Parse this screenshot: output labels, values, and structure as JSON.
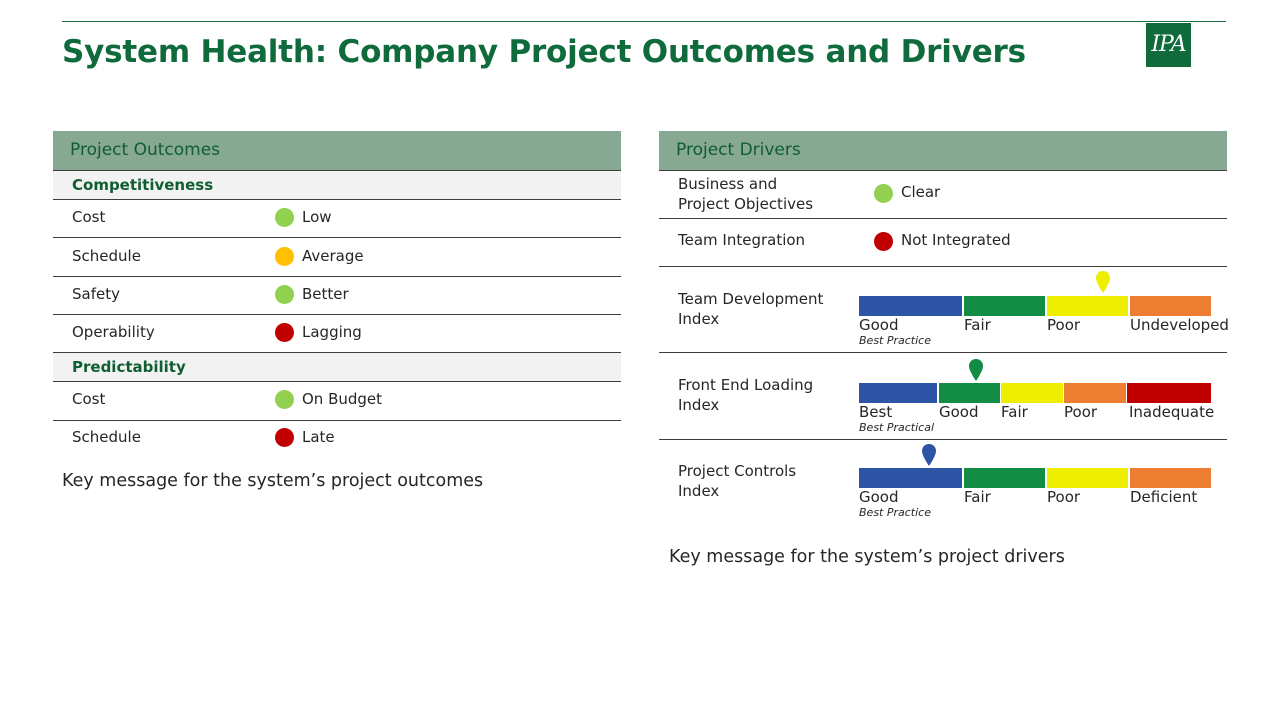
{
  "header": {
    "title": "System Health: Company Project Outcomes and Drivers",
    "logo_text": "IPA",
    "brand_color": "#0f6a3c"
  },
  "outcomes": {
    "header": "Project Outcomes",
    "competitiveness": {
      "label": "Competitiveness",
      "rows": [
        {
          "label": "Cost",
          "value": "Low",
          "color": "#92d050"
        },
        {
          "label": "Schedule",
          "value": "Average",
          "color": "#ffc000"
        },
        {
          "label": "Safety",
          "value": "Better",
          "color": "#92d050"
        },
        {
          "label": "Operability",
          "value": "Lagging",
          "color": "#c00000"
        }
      ]
    },
    "predictability": {
      "label": "Predictability",
      "rows": [
        {
          "label": "Cost",
          "value": "On Budget",
          "color": "#92d050"
        },
        {
          "label": "Schedule",
          "value": "Late",
          "color": "#c00000"
        }
      ]
    },
    "key_message": "Key message for the system’s project outcomes"
  },
  "drivers": {
    "header": "Project Drivers",
    "business_objectives": {
      "label_line1": "Business and",
      "label_line2": "Project Objectives",
      "value": "Clear",
      "color": "#92d050"
    },
    "team_integration": {
      "label": "Team Integration",
      "value": "Not Integrated",
      "color": "#c00000"
    },
    "team_development": {
      "label_line1": "Team Development",
      "label_line2": "Index",
      "segments": [
        "Good",
        "Fair",
        "Poor",
        "Undeveloped"
      ],
      "note": "Best Practice",
      "rating": "Poor",
      "marker_color": "#eeee00"
    },
    "front_end_loading": {
      "label_line1": "Front End Loading",
      "label_line2": "Index",
      "segments": [
        "Best",
        "Good",
        "Fair",
        "Poor",
        "Inadequate"
      ],
      "note": "Best Practical",
      "rating": "Good",
      "marker_color": "#138c44"
    },
    "project_controls": {
      "label_line1": "Project Controls",
      "label_line2": "Index",
      "segments": [
        "Good",
        "Fair",
        "Poor",
        "Deficient"
      ],
      "note": "Best Practice",
      "rating": "Good",
      "marker_color": "#2e55a5"
    },
    "key_message": "Key message for the system’s project drivers"
  },
  "scale_colors": {
    "blue": "#2e55a5",
    "green": "#138c44",
    "yellow": "#eeee00",
    "orange": "#ed7d31",
    "red": "#c00000"
  }
}
